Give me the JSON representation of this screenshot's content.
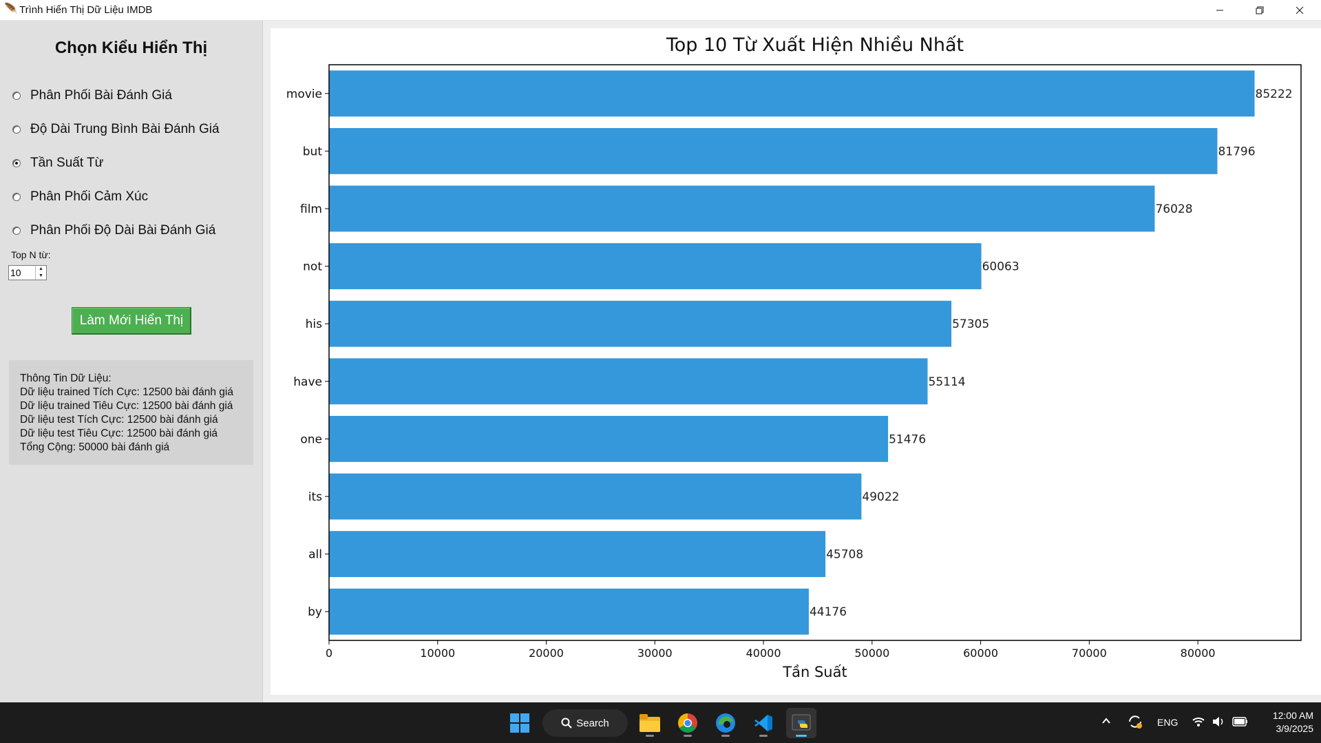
{
  "window": {
    "title": "Trình Hiển Thị Dữ Liệu IMDB"
  },
  "sidebar": {
    "heading": "Chọn Kiểu Hiển Thị",
    "options": [
      {
        "label": "Phân Phối Bài Đánh Giá",
        "checked": false
      },
      {
        "label": "Độ Dài Trung Bình Bài Đánh Giá",
        "checked": false
      },
      {
        "label": "Tần Suất Từ",
        "checked": true
      },
      {
        "label": "Phân Phối Cảm Xúc",
        "checked": false
      },
      {
        "label": "Phân Phối Độ Dài Bài Đánh Giá",
        "checked": false
      }
    ],
    "topn_label": "Top N từ:",
    "topn_value": "10",
    "refresh_label": "Làm Mới Hiển Thị",
    "refresh_color": "#4caf50",
    "info": {
      "header": "Thông Tin Dữ Liệu:",
      "lines": [
        "Dữ liệu trained Tích Cực: 12500 bài đánh giá",
        "Dữ liệu trained Tiêu Cực: 12500 bài đánh giá",
        "Dữ liệu test Tích Cực: 12500 bài đánh giá",
        "Dữ liệu test Tiêu Cực: 12500 bài đánh giá",
        "Tổng Cộng: 50000 bài đánh giá"
      ]
    }
  },
  "chart_data": {
    "type": "bar",
    "orientation": "horizontal",
    "title": "Top 10 Từ Xuất Hiện Nhiều Nhất",
    "xlabel": "Tần Suất",
    "ylabel": "",
    "categories": [
      "movie",
      "but",
      "film",
      "not",
      "his",
      "have",
      "one",
      "its",
      "all",
      "by"
    ],
    "values": [
      85222,
      81796,
      76028,
      60063,
      57305,
      55114,
      51476,
      49022,
      45708,
      44176
    ],
    "xlim": [
      0,
      89500
    ],
    "xticks": [
      0,
      10000,
      20000,
      30000,
      40000,
      50000,
      60000,
      70000,
      80000
    ],
    "bar_color": "#3498db",
    "grid": false,
    "legend": "none",
    "data_labels": true
  },
  "taskbar": {
    "search_label": "Search",
    "language": "ENG",
    "time": "12:00 AM",
    "date": "3/9/2025",
    "apps": [
      "windows-start-icon",
      "file-explorer-icon",
      "chrome-icon",
      "edge-icon",
      "vscode-icon",
      "python-icon"
    ]
  }
}
